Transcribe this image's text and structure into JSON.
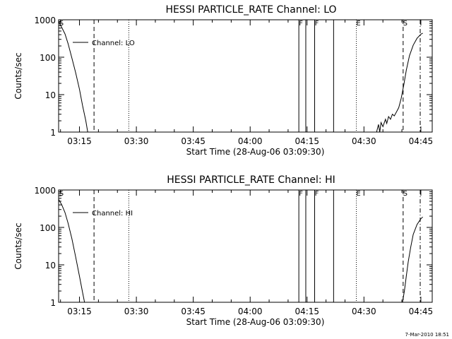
{
  "footer": {
    "timestamp": "7-Mar-2010 18:51"
  },
  "chart_data": [
    {
      "type": "line",
      "title": "HESSI PARTICLE_RATE Channel: LO",
      "xlabel": "Start Time (28-Aug-06 03:09:30)",
      "ylabel": "Counts/sec",
      "y_scale": "log",
      "xlim": [
        "03:09:30",
        "04:48:00"
      ],
      "ylim": [
        1,
        1000
      ],
      "x_ticks": [
        "03:15",
        "03:30",
        "03:45",
        "04:00",
        "04:15",
        "04:30",
        "04:45"
      ],
      "y_ticks": [
        "1",
        "10",
        "100",
        "1000"
      ],
      "legend": {
        "entries": [
          "Channel: LO"
        ],
        "placement": "top-left"
      },
      "markers": [
        {
          "label": "S",
          "time": "03:09:40",
          "style": "none"
        },
        {
          "label": "",
          "time": "03:18:50",
          "style": "dashed"
        },
        {
          "label": "",
          "time": "03:28:00",
          "style": "dotted"
        },
        {
          "label": "F",
          "time": "04:12:50",
          "style": "solid"
        },
        {
          "label": "",
          "time": "04:14:40",
          "style": "solid"
        },
        {
          "label": "F",
          "time": "04:17:00",
          "style": "solid"
        },
        {
          "label": "",
          "time": "04:22:00",
          "style": "solid"
        },
        {
          "label": "E",
          "time": "04:28:00",
          "style": "dotted"
        },
        {
          "label": "S",
          "time": "04:40:20",
          "style": "dashed"
        },
        {
          "label": "",
          "time": "04:44:50",
          "style": "dashdot"
        }
      ],
      "series": [
        {
          "name": "Channel: LO",
          "segments": [
            [
              [
                "03:09:30",
                900
              ],
              [
                "03:10:20",
                620
              ],
              [
                "03:11:10",
                420
              ],
              [
                "03:12:00",
                230
              ],
              [
                "03:13:00",
                95
              ],
              [
                "03:14:00",
                38
              ],
              [
                "03:15:00",
                14
              ],
              [
                "03:15:50",
                5
              ],
              [
                "03:16:40",
                2
              ],
              [
                "03:17:10",
                1
              ]
            ],
            [
              [
                "04:33:20",
                1
              ],
              [
                "04:33:50",
                1.6
              ],
              [
                "04:34:10",
                1
              ],
              [
                "04:34:30",
                1.8
              ],
              [
                "04:35:00",
                1.4
              ],
              [
                "04:35:40",
                2.2
              ],
              [
                "04:36:00",
                1.7
              ],
              [
                "04:36:30",
                2.6
              ],
              [
                "04:37:00",
                2.2
              ],
              [
                "04:37:30",
                3
              ],
              [
                "04:38:00",
                2.7
              ],
              [
                "04:38:40",
                3.6
              ],
              [
                "04:39:10",
                4.5
              ],
              [
                "04:39:50",
                8
              ],
              [
                "04:40:30",
                18
              ],
              [
                "04:41:10",
                45
              ],
              [
                "04:42:00",
                110
              ],
              [
                "04:43:00",
                210
              ],
              [
                "04:44:00",
                320
              ],
              [
                "04:45:00",
                410
              ],
              [
                "04:45:30",
                440
              ]
            ]
          ]
        }
      ]
    },
    {
      "type": "line",
      "title": "HESSI PARTICLE_RATE Channel: HI",
      "xlabel": "Start Time (28-Aug-06 03:09:30)",
      "ylabel": "Counts/sec",
      "y_scale": "log",
      "xlim": [
        "03:09:30",
        "04:48:00"
      ],
      "ylim": [
        1,
        1000
      ],
      "x_ticks": [
        "03:15",
        "03:30",
        "03:45",
        "04:00",
        "04:15",
        "04:30",
        "04:45"
      ],
      "y_ticks": [
        "1",
        "10",
        "100",
        "1000"
      ],
      "legend": {
        "entries": [
          "Channel: HI"
        ],
        "placement": "top-left"
      },
      "markers": [
        {
          "label": "S",
          "time": "03:09:40",
          "style": "none"
        },
        {
          "label": "",
          "time": "03:18:50",
          "style": "dashed"
        },
        {
          "label": "",
          "time": "03:28:00",
          "style": "dotted"
        },
        {
          "label": "F",
          "time": "04:12:50",
          "style": "solid"
        },
        {
          "label": "",
          "time": "04:14:40",
          "style": "solid"
        },
        {
          "label": "F",
          "time": "04:17:00",
          "style": "solid"
        },
        {
          "label": "",
          "time": "04:22:00",
          "style": "solid"
        },
        {
          "label": "E",
          "time": "04:28:00",
          "style": "dotted"
        },
        {
          "label": "S",
          "time": "04:40:20",
          "style": "dashed"
        },
        {
          "label": "",
          "time": "04:44:50",
          "style": "dashdot"
        }
      ],
      "series": [
        {
          "name": "Channel: HI",
          "segments": [
            [
              [
                "03:09:30",
                560
              ],
              [
                "03:10:20",
                400
              ],
              [
                "03:11:10",
                250
              ],
              [
                "03:12:00",
                130
              ],
              [
                "03:13:00",
                50
              ],
              [
                "03:14:00",
                16
              ],
              [
                "03:15:00",
                5
              ],
              [
                "03:15:50",
                1.8
              ],
              [
                "03:16:20",
                1
              ]
            ],
            [
              [
                "04:40:10",
                1
              ],
              [
                "04:40:40",
                2
              ],
              [
                "04:41:10",
                5
              ],
              [
                "04:41:40",
                12
              ],
              [
                "04:42:20",
                30
              ],
              [
                "04:43:00",
                65
              ],
              [
                "04:44:00",
                120
              ],
              [
                "04:45:00",
                170
              ],
              [
                "04:45:30",
                190
              ]
            ]
          ]
        }
      ]
    }
  ]
}
